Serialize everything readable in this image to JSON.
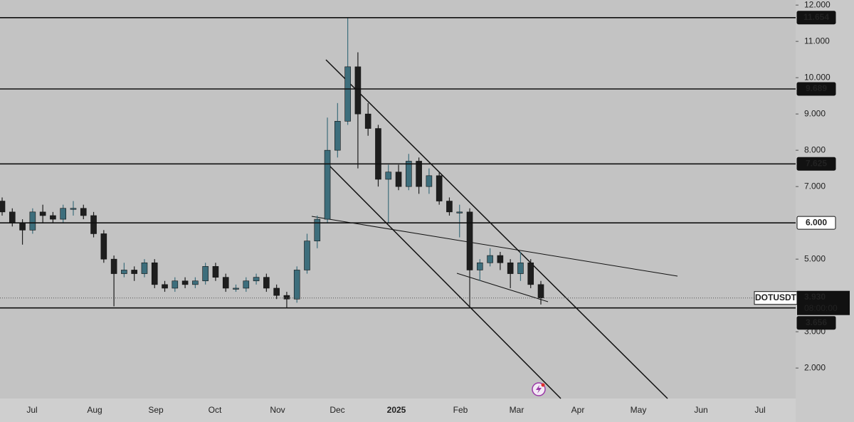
{
  "chart_data": {
    "type": "candlestick",
    "open": [
      6.6,
      6.3,
      6.0,
      5.8,
      6.3,
      6.2,
      6.1,
      6.4,
      6.4,
      6.2,
      5.7,
      5.0,
      4.6,
      4.7,
      4.6,
      4.9,
      4.3,
      4.2,
      4.4,
      4.3,
      4.4,
      4.8,
      4.5,
      4.2,
      4.2,
      4.4,
      4.5,
      4.2,
      4.0,
      3.9,
      4.7,
      5.5,
      6.1,
      8.0,
      8.8,
      10.3,
      9.0,
      8.6,
      7.2,
      7.4,
      7.0,
      7.7,
      7.0,
      7.3,
      6.6,
      6.3,
      6.3,
      4.7,
      4.9,
      5.1,
      4.9,
      4.6,
      4.9,
      4.3
    ],
    "high": [
      6.7,
      6.4,
      6.1,
      6.4,
      6.5,
      6.3,
      6.5,
      6.6,
      6.5,
      6.3,
      5.8,
      5.1,
      4.9,
      4.8,
      5.0,
      5.0,
      4.4,
      4.5,
      4.5,
      4.5,
      4.9,
      4.9,
      4.6,
      4.3,
      4.5,
      4.6,
      4.6,
      4.3,
      4.1,
      4.8,
      5.7,
      6.2,
      8.9,
      9.3,
      11.65,
      10.7,
      9.3,
      8.7,
      7.6,
      7.6,
      7.9,
      7.8,
      7.5,
      7.4,
      6.7,
      6.5,
      6.4,
      5.0,
      5.3,
      5.2,
      5.0,
      5.2,
      5.0,
      4.4
    ],
    "low": [
      6.2,
      5.9,
      5.4,
      5.7,
      6.0,
      6.0,
      6.0,
      6.2,
      6.1,
      5.6,
      4.9,
      3.7,
      4.5,
      4.4,
      4.5,
      4.2,
      4.1,
      4.1,
      4.2,
      4.2,
      4.3,
      4.4,
      4.1,
      4.1,
      4.1,
      4.3,
      4.1,
      3.9,
      3.65,
      3.8,
      4.6,
      5.3,
      6.0,
      7.8,
      8.7,
      7.5,
      8.4,
      7.0,
      6.0,
      6.9,
      6.9,
      6.8,
      6.8,
      6.5,
      6.2,
      5.6,
      3.7,
      4.4,
      4.8,
      4.7,
      4.2,
      4.4,
      4.2,
      3.75
    ],
    "close": [
      6.3,
      6.0,
      5.8,
      6.3,
      6.2,
      6.1,
      6.4,
      6.4,
      6.2,
      5.7,
      5.0,
      4.6,
      4.7,
      4.6,
      4.9,
      4.3,
      4.2,
      4.4,
      4.3,
      4.4,
      4.8,
      4.5,
      4.2,
      4.2,
      4.4,
      4.5,
      4.2,
      4.0,
      3.9,
      4.7,
      5.5,
      6.1,
      8.0,
      8.8,
      10.3,
      9.0,
      8.6,
      7.2,
      7.4,
      7.0,
      7.7,
      7.0,
      7.3,
      6.6,
      6.3,
      6.3,
      4.7,
      4.9,
      5.1,
      4.9,
      4.6,
      4.9,
      4.3,
      3.93
    ],
    "up_color": "#3d6e7c",
    "down_color": "#1e1e1e",
    "x_axis_labels": [
      "Jul",
      "Aug",
      "Sep",
      "Oct",
      "Nov",
      "Dec",
      "2025",
      "Feb",
      "Mar",
      "Apr",
      "May",
      "Jun",
      "Jul"
    ],
    "ylim": [
      1.16,
      12.14
    ],
    "yticks": [
      {
        "value": 2,
        "label": "2.000"
      },
      {
        "value": 3,
        "label": "3.000"
      },
      {
        "value": 5,
        "label": "5.000"
      },
      {
        "value": 7,
        "label": "7.000"
      },
      {
        "value": 8,
        "label": "8.000"
      },
      {
        "value": 9,
        "label": "9.000"
      },
      {
        "value": 10,
        "label": "10.000"
      },
      {
        "value": 11,
        "label": "11.000"
      },
      {
        "value": 12,
        "label": "12.000"
      }
    ],
    "levels": [
      11.654,
      9.689,
      7.625,
      {
        "value": 6,
        "label": "6.000"
      },
      3.656
    ],
    "current": {
      "symbol": "DOTUSDT",
      "price": {
        "value": 3.93,
        "label": "3.930"
      },
      "countdown": "08:00:00"
    }
  }
}
